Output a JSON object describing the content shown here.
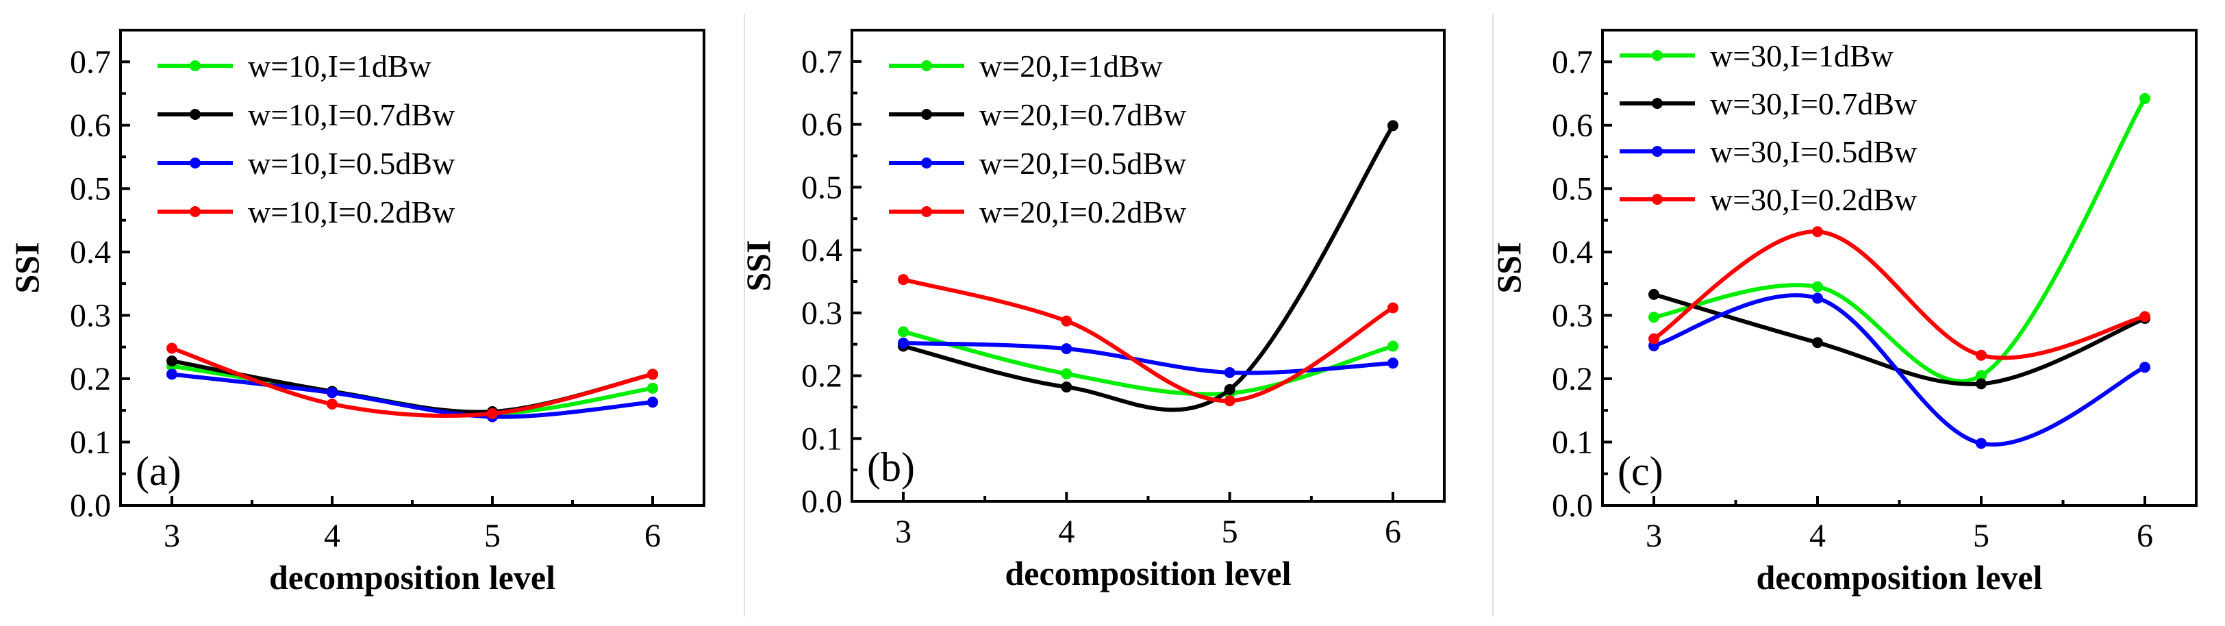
{
  "chart_data": [
    {
      "type": "line",
      "panel_label": "(a)",
      "xlabel": "decomposition level",
      "ylabel": "SSI",
      "categories": [
        3,
        4,
        5,
        6
      ],
      "xticks": [
        "3",
        "4",
        "5",
        "6"
      ],
      "ylim": [
        0,
        0.75
      ],
      "yticks": [
        "0.0",
        "0.1",
        "0.2",
        "0.3",
        "0.4",
        "0.5",
        "0.6",
        "0.7"
      ],
      "legend_position": "top-left",
      "series": [
        {
          "name": "w=10,I=1dBw",
          "color": "#00ee00",
          "values": [
            0.22,
            0.18,
            0.145,
            0.185
          ]
        },
        {
          "name": "w=10,I=0.7dBw",
          "color": "#000000",
          "values": [
            0.228,
            0.18,
            0.148,
            0.207
          ]
        },
        {
          "name": "w=10,I=0.5dBw",
          "color": "#0000ff",
          "values": [
            0.207,
            0.178,
            0.14,
            0.163
          ]
        },
        {
          "name": "w=10,I=0.2dBw",
          "color": "#ff0000",
          "values": [
            0.248,
            0.16,
            0.145,
            0.207
          ]
        }
      ]
    },
    {
      "type": "line",
      "panel_label": "(b)",
      "xlabel": "decomposition level",
      "ylabel": "SSI",
      "categories": [
        3,
        4,
        5,
        6
      ],
      "xticks": [
        "3",
        "4",
        "5",
        "6"
      ],
      "ylim": [
        0,
        0.75
      ],
      "yticks": [
        "0.0",
        "0.1",
        "0.2",
        "0.3",
        "0.4",
        "0.5",
        "0.6",
        "0.7"
      ],
      "legend_position": "top-left",
      "series": [
        {
          "name": "w=20,I=1dBw",
          "color": "#00ee00",
          "values": [
            0.27,
            0.203,
            0.172,
            0.247
          ]
        },
        {
          "name": "w=20,I=0.7dBw",
          "color": "#000000",
          "values": [
            0.247,
            0.182,
            0.178,
            0.598
          ]
        },
        {
          "name": "w=20,I=0.5dBw",
          "color": "#0000ff",
          "values": [
            0.252,
            0.243,
            0.205,
            0.22
          ]
        },
        {
          "name": "w=20,I=0.2dBw",
          "color": "#ff0000",
          "values": [
            0.353,
            0.287,
            0.16,
            0.308
          ]
        }
      ]
    },
    {
      "type": "line",
      "panel_label": "(c)",
      "xlabel": "decomposition level",
      "ylabel": "SSI",
      "categories": [
        3,
        4,
        5,
        6
      ],
      "xticks": [
        "3",
        "4",
        "5",
        "6"
      ],
      "ylim": [
        0,
        0.75
      ],
      "yticks": [
        "0.0",
        "0.1",
        "0.2",
        "0.3",
        "0.4",
        "0.5",
        "0.6",
        "0.7"
      ],
      "legend_position": "top-left",
      "series": [
        {
          "name": "w=30,I=1dBw",
          "color": "#00ee00",
          "values": [
            0.297,
            0.345,
            0.205,
            0.642
          ]
        },
        {
          "name": "w=30,I=0.7dBw",
          "color": "#000000",
          "values": [
            0.333,
            0.257,
            0.192,
            0.295
          ]
        },
        {
          "name": "w=30,I=0.5dBw",
          "color": "#0000ff",
          "values": [
            0.252,
            0.327,
            0.098,
            0.218
          ]
        },
        {
          "name": "w=30,I=0.2dBw",
          "color": "#ff0000",
          "values": [
            0.263,
            0.432,
            0.237,
            0.298
          ]
        }
      ]
    }
  ]
}
